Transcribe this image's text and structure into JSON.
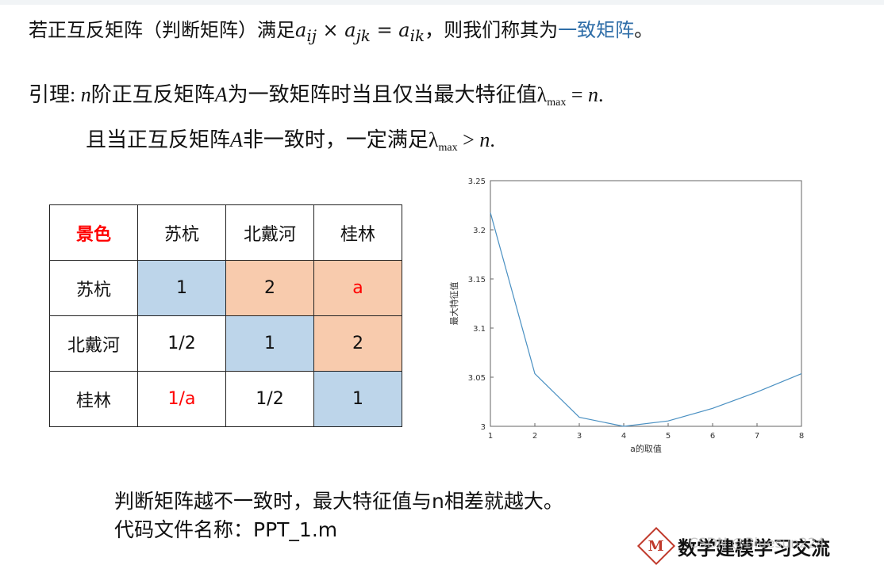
{
  "line1": {
    "prefix": "若正互反矩阵（判断矩阵）满足",
    "formula": "a",
    "sub_ij": "ij",
    "times": " × a",
    "sub_jk": "jk",
    "eq": " = a",
    "sub_ik": "ik",
    "suffix": "，则我们称其为",
    "link": "一致矩阵",
    "end": "。"
  },
  "lemma": {
    "label": "引理: ",
    "n": "n",
    "text1": "阶正互反矩阵",
    "A": "A",
    "text2": "为一致矩阵时当且仅当最大特征值",
    "lambda": "λ",
    "max": "max",
    "tail": " = ",
    "n2": "n",
    "dot": "."
  },
  "lemma2": {
    "text1": "且当正互反矩阵",
    "A": "A",
    "text2": "非一致时，一定满足",
    "lambda": "λ",
    "max": "max",
    "tail": " > ",
    "n": "n",
    "dot": "."
  },
  "table": {
    "header": [
      "景色",
      "苏杭",
      "北戴河",
      "桂林"
    ],
    "rows": [
      [
        "苏杭",
        "1",
        "2",
        "a"
      ],
      [
        "北戴河",
        "1/2",
        "1",
        "2"
      ],
      [
        "桂林",
        "1/a",
        "1/2",
        "1"
      ]
    ]
  },
  "chart_data": {
    "type": "line",
    "x": [
      1,
      2,
      3,
      4,
      5,
      6,
      7,
      8
    ],
    "values": [
      3.2174,
      3.0536,
      3.0092,
      3.0,
      3.0055,
      3.0183,
      3.0349,
      3.0536
    ],
    "xlabel": "a的取值",
    "ylabel": "最大特征值",
    "xlim": [
      1,
      8
    ],
    "ylim": [
      3,
      3.25
    ],
    "xticks": [
      "1",
      "2",
      "3",
      "4",
      "5",
      "6",
      "7",
      "8"
    ],
    "yticks": [
      "3",
      "3.05",
      "3.1",
      "3.15",
      "3.2",
      "3.25"
    ],
    "line_color": "#4a90c2",
    "grid": false
  },
  "bottom": {
    "line1": "判断矩阵越不一致时，最大特征值与n相差就越大。",
    "line2": "代码文件名称：PPT_1.m"
  },
  "logo": {
    "mark": "M",
    "text": "数学建模学习交流"
  },
  "watermark": "CSDN @Bluesun224"
}
